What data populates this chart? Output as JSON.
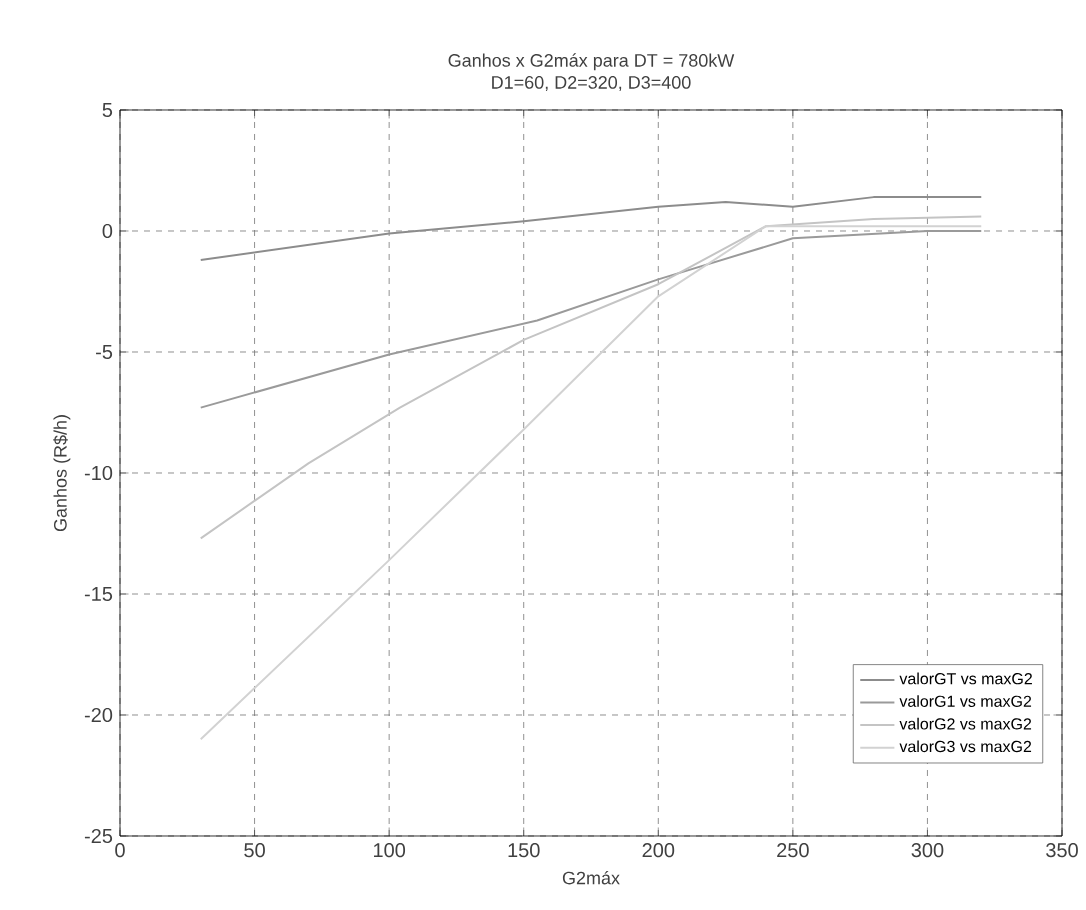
{
  "chart_data": {
    "type": "line",
    "title": "Ganhos x G2máx para DT = 780kW",
    "subtitle": "D1=60, D2=320, D3=400",
    "xlabel": "G2máx",
    "ylabel": "Ganhos (R$/h)",
    "xlim": [
      0,
      350
    ],
    "ylim": [
      -25,
      5
    ],
    "xticks": [
      0,
      50,
      100,
      150,
      200,
      250,
      300,
      350
    ],
    "yticks": [
      -25,
      -20,
      -15,
      -10,
      -5,
      0,
      5
    ],
    "grid": true,
    "legend": "bottom right",
    "marker": "none",
    "line_style": "solid",
    "series": [
      {
        "name": "valorGT vs maxG2",
        "color": "#8c8c8c",
        "x": [
          30,
          100,
          150,
          200,
          225,
          250,
          280,
          320
        ],
        "values": [
          -1.2,
          -0.1,
          0.4,
          1.0,
          1.2,
          1.0,
          1.4,
          1.4
        ]
      },
      {
        "name": "valorG1 vs maxG2",
        "color": "#9a9a9a",
        "x": [
          30,
          100,
          155,
          200,
          250,
          300,
          320
        ],
        "values": [
          -7.3,
          -5.1,
          -3.7,
          -2.0,
          -0.3,
          0.0,
          0.0
        ]
      },
      {
        "name": "valorG2 vs maxG2",
        "color": "#c4c4c4",
        "x": [
          30,
          70,
          104,
          150,
          200,
          240,
          280,
          320
        ],
        "values": [
          -12.7,
          -9.6,
          -7.3,
          -4.5,
          -2.2,
          0.2,
          0.5,
          0.6
        ]
      },
      {
        "name": "valorG3 vs maxG2",
        "color": "#d2d2d2",
        "x": [
          30,
          100,
          150,
          200,
          240,
          280,
          320
        ],
        "values": [
          -21,
          -13.6,
          -8.2,
          -2.7,
          0.2,
          0.2,
          0.2
        ]
      }
    ]
  }
}
